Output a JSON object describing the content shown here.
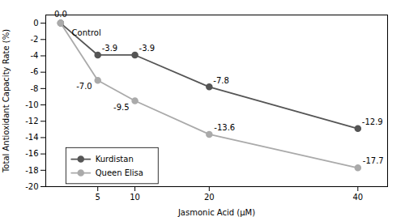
{
  "chart_data": {
    "type": "line",
    "xlabel": "Jasmonic Acid (μM)",
    "ylabel": "Total Antioxidant Capacity Rate (%)",
    "x": [
      0,
      5,
      10,
      20,
      40
    ],
    "series": [
      {
        "name": "Kurdistan",
        "color": "#555555",
        "marker": "circle",
        "values": [
          0.0,
          -3.9,
          -3.9,
          -7.8,
          -12.9
        ],
        "value_labels": [
          "0.0",
          "-3.9",
          "-3.9",
          "-7.8",
          "-12.9"
        ]
      },
      {
        "name": "Queen Elisa",
        "color": "#aaaaaa",
        "marker": "circle",
        "values": [
          0.0,
          -7.0,
          -9.5,
          -13.6,
          -17.7
        ],
        "value_labels": [
          null,
          "-7.0",
          "-9.5",
          "-13.6",
          "-17.7"
        ]
      }
    ],
    "xlim": [
      -2,
      44
    ],
    "xticks": [
      5,
      10,
      20,
      40
    ],
    "ylim": [
      -20,
      1
    ],
    "yticks": [
      0,
      -2,
      -4,
      -6,
      -8,
      -10,
      -12,
      -14,
      -16,
      -18,
      -20
    ],
    "annotations": [
      {
        "text": "Control",
        "x": 1.5,
        "y": -0.85
      }
    ],
    "data_labels": true,
    "legend": "lower left",
    "grid": false
  }
}
